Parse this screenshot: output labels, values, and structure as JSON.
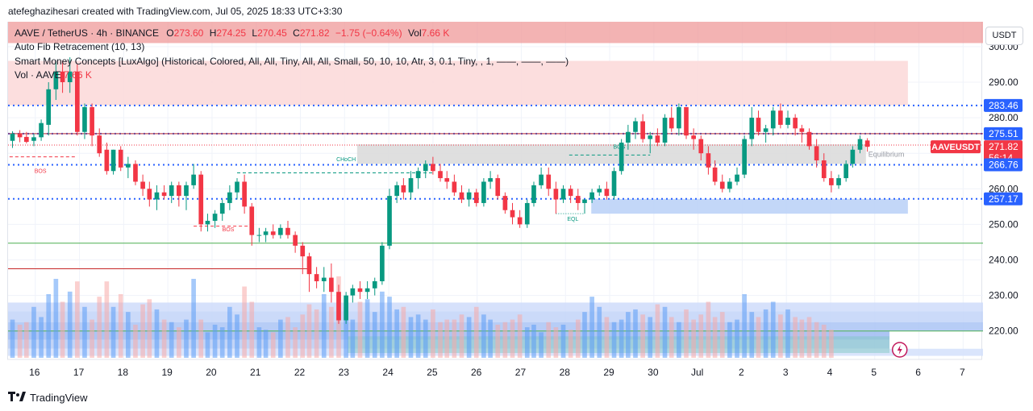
{
  "caption": "atefeghazihesari created with TradingView.com, Jul 05, 2025 18:33 UTC+3:30",
  "currency_button": "USDT",
  "brand": {
    "logo_icon": "tradingview-logo-icon",
    "name": "TradingView"
  },
  "legend": {
    "symbol": "AAVE / TetherUS · 4h · BINANCE",
    "open_label": "O",
    "open": "273.60",
    "high_label": "H",
    "high": "274.25",
    "low_label": "L",
    "low": "270.45",
    "close_label": "C",
    "close": "271.82",
    "change": "−1.75 (−0.64%)",
    "vol_label": "Vol",
    "vol": "7.66 K",
    "indicators": [
      "Auto Fib Retracement (10, 13)",
      "Smart Money Concepts [LuxAlgo] (Historical, Colored, All, All, Tiny, All, All, Small, 50, 10, 10, Atr, 3, 0.1, Tiny, , 1, ——, ——, ——)"
    ],
    "vol_row_label": "Vol · AAVE",
    "vol_row_value": "7.66 K"
  },
  "colors": {
    "up": "#089981",
    "down": "#f23645",
    "dotted": "#2962ff",
    "premium": "#fcdada",
    "discount": "#cfe0fb",
    "equilibrium": "#e0e0e0"
  },
  "chart_data": {
    "type": "candlestick",
    "symbol": "AAVEUSDT",
    "timeframe": "4h",
    "ylim": [
      212,
      307
    ],
    "y_ticks": [
      220,
      230,
      240,
      250,
      260,
      270,
      280,
      290,
      300
    ],
    "x_ticks": [
      {
        "label": "16",
        "x": 0
      },
      {
        "label": "17",
        "x": 6
      },
      {
        "label": "18",
        "x": 12
      },
      {
        "label": "19",
        "x": 18
      },
      {
        "label": "20",
        "x": 24
      },
      {
        "label": "21",
        "x": 30
      },
      {
        "label": "22",
        "x": 36
      },
      {
        "label": "23",
        "x": 42
      },
      {
        "label": "24",
        "x": 48
      },
      {
        "label": "25",
        "x": 54
      },
      {
        "label": "26",
        "x": 60
      },
      {
        "label": "27",
        "x": 66
      },
      {
        "label": "28",
        "x": 72
      },
      {
        "label": "29",
        "x": 78
      },
      {
        "label": "30",
        "x": 84
      },
      {
        "label": "Jul",
        "x": 90
      },
      {
        "label": "2",
        "x": 96
      },
      {
        "label": "3",
        "x": 102
      },
      {
        "label": "4",
        "x": 108
      },
      {
        "label": "5",
        "x": 114
      },
      {
        "label": "6",
        "x": 120
      },
      {
        "label": "7",
        "x": 126
      }
    ],
    "x_range": [
      -3.7,
      128.7
    ],
    "candles": [
      [
        -3.1,
        273.5,
        276.2,
        271.5,
        275.5
      ],
      [
        -2.1,
        275.5,
        276.5,
        273.1,
        274.5
      ],
      [
        -1.2,
        274.6,
        276.0,
        272.8,
        273.2
      ],
      [
        -0.2,
        273.5,
        275.5,
        272.0,
        274.5
      ],
      [
        0.8,
        274.5,
        279.5,
        273.5,
        278.5
      ],
      [
        1.8,
        278,
        290,
        275,
        288
      ],
      [
        2.8,
        288,
        296,
        285,
        293
      ],
      [
        3.7,
        293,
        296,
        287,
        290
      ],
      [
        4.7,
        290,
        297,
        287,
        293
      ],
      [
        5.7,
        293,
        295,
        275,
        276
      ],
      [
        6.7,
        276,
        284,
        274,
        283
      ],
      [
        7.7,
        283,
        284,
        272,
        275
      ],
      [
        8.7,
        275,
        277,
        269,
        270
      ],
      [
        9.7,
        271,
        273,
        264,
        265
      ],
      [
        10.6,
        265,
        271,
        264,
        271
      ],
      [
        11.6,
        271,
        272,
        265,
        266
      ],
      [
        12.6,
        266,
        269,
        263,
        267
      ],
      [
        13.6,
        267,
        268,
        261,
        262
      ],
      [
        14.6,
        262,
        264,
        258,
        260
      ],
      [
        15.5,
        260,
        262,
        255,
        257
      ],
      [
        16.5,
        257,
        261,
        254,
        259
      ],
      [
        17.5,
        259,
        261,
        257,
        258
      ],
      [
        18.5,
        258,
        262,
        256,
        261
      ],
      [
        19.5,
        261,
        262,
        255,
        258
      ],
      [
        20.5,
        258,
        262,
        254,
        261
      ],
      [
        21.5,
        261,
        267,
        260,
        264
      ],
      [
        22.5,
        264,
        265,
        248,
        250
      ],
      [
        23.4,
        250,
        253,
        248,
        251
      ],
      [
        24.4,
        251,
        254,
        249,
        253
      ],
      [
        25.4,
        253,
        257,
        251,
        256
      ],
      [
        26.4,
        256,
        261,
        254,
        259
      ],
      [
        27.4,
        259,
        263,
        257,
        262
      ],
      [
        28.4,
        262,
        264,
        253,
        255
      ],
      [
        29.4,
        255,
        256,
        244,
        247
      ],
      [
        30.4,
        247,
        249,
        245,
        247
      ],
      [
        31.3,
        247,
        249,
        245,
        248
      ],
      [
        32.3,
        248,
        250,
        246,
        247
      ],
      [
        33.3,
        247,
        250,
        246,
        249
      ],
      [
        34.3,
        249,
        251,
        246,
        247
      ],
      [
        35.3,
        247,
        248,
        242,
        244
      ],
      [
        36.3,
        244,
        245,
        236,
        241
      ],
      [
        37.2,
        241,
        242,
        231,
        236
      ],
      [
        38.2,
        236,
        238,
        232,
        234
      ],
      [
        39.2,
        234,
        238,
        231,
        235
      ],
      [
        40.2,
        235,
        239,
        228,
        231
      ],
      [
        41.2,
        231,
        233,
        222,
        223
      ],
      [
        42.2,
        223,
        231,
        222,
        230
      ],
      [
        43.1,
        230,
        233,
        228,
        232
      ],
      [
        44.1,
        232,
        234,
        229,
        231
      ],
      [
        45.1,
        231,
        234,
        229,
        232
      ],
      [
        46.1,
        232,
        235,
        230,
        234
      ],
      [
        47.1,
        234,
        245,
        233,
        244
      ],
      [
        48.1,
        244,
        260,
        243,
        258
      ],
      [
        49.1,
        258,
        262,
        256,
        261
      ],
      [
        50.0,
        261,
        263,
        257,
        259
      ],
      [
        51.0,
        259,
        265,
        257,
        263
      ],
      [
        52.0,
        263,
        266,
        260,
        265
      ],
      [
        53.0,
        265,
        268,
        263,
        267
      ],
      [
        54.0,
        267,
        269,
        264,
        265
      ],
      [
        55.0,
        265,
        267,
        262,
        263
      ],
      [
        55.9,
        263,
        265,
        260,
        262
      ],
      [
        56.9,
        262,
        264,
        258,
        259
      ],
      [
        57.9,
        259,
        261,
        256,
        257
      ],
      [
        58.9,
        257,
        260,
        255,
        259
      ],
      [
        59.9,
        259,
        260,
        255,
        256
      ],
      [
        60.9,
        256,
        263,
        255,
        262
      ],
      [
        61.8,
        262,
        265,
        260,
        263
      ],
      [
        62.8,
        263,
        264,
        257,
        258
      ],
      [
        63.8,
        258,
        259,
        253,
        254
      ],
      [
        64.8,
        254,
        256,
        250,
        252
      ],
      [
        65.8,
        252,
        254,
        249,
        250
      ],
      [
        66.8,
        250,
        257,
        249,
        256
      ],
      [
        67.7,
        256,
        262,
        255,
        261
      ],
      [
        68.7,
        261,
        266,
        260,
        264
      ],
      [
        69.7,
        264,
        266,
        258,
        260
      ],
      [
        70.7,
        260,
        262,
        253,
        257
      ],
      [
        71.7,
        257,
        261,
        256,
        260
      ],
      [
        72.7,
        260,
        261,
        256,
        258
      ],
      [
        73.7,
        258,
        260,
        254,
        256
      ],
      [
        74.6,
        256,
        257,
        253,
        257
      ],
      [
        75.6,
        257,
        260,
        256,
        259
      ],
      [
        76.6,
        259,
        261,
        258,
        260
      ],
      [
        77.6,
        260,
        262,
        257,
        258
      ],
      [
        78.6,
        258,
        266,
        257,
        265
      ],
      [
        79.6,
        265,
        274,
        264,
        273
      ],
      [
        80.5,
        273,
        278,
        271,
        276
      ],
      [
        81.5,
        276,
        280,
        274,
        279
      ],
      [
        82.5,
        279,
        281,
        273,
        274
      ],
      [
        83.5,
        274,
        276,
        270,
        275
      ],
      [
        84.5,
        275,
        277,
        272,
        273
      ],
      [
        85.5,
        273,
        281,
        272,
        280
      ],
      [
        86.4,
        280,
        283,
        276,
        277
      ],
      [
        87.4,
        277,
        284,
        275,
        283
      ],
      [
        88.4,
        283,
        283,
        274,
        275
      ],
      [
        89.4,
        275,
        277,
        271,
        274
      ],
      [
        90.4,
        274,
        275,
        268,
        270
      ],
      [
        91.4,
        270,
        272,
        264,
        266
      ],
      [
        92.3,
        266,
        268,
        261,
        262
      ],
      [
        93.3,
        262,
        264,
        259,
        260
      ],
      [
        94.3,
        260,
        263,
        259,
        262
      ],
      [
        95.3,
        262,
        266,
        261,
        264
      ],
      [
        96.3,
        264,
        275,
        263,
        274
      ],
      [
        97.3,
        274,
        283,
        272,
        280
      ],
      [
        98.2,
        280,
        282,
        275,
        276
      ],
      [
        99.2,
        276,
        278,
        273,
        277
      ],
      [
        100.2,
        277,
        283,
        275,
        282
      ],
      [
        101.2,
        282,
        284,
        277,
        278
      ],
      [
        102.2,
        278,
        282,
        277,
        280
      ],
      [
        103.2,
        280,
        281,
        275,
        277
      ],
      [
        104.1,
        277,
        278,
        273,
        276
      ],
      [
        105.1,
        276,
        277,
        271,
        272
      ],
      [
        106.1,
        272,
        274,
        266,
        268
      ],
      [
        107.1,
        268,
        270,
        262,
        263
      ],
      [
        108.1,
        263,
        265,
        259,
        261
      ],
      [
        109.1,
        261,
        264,
        260,
        263
      ],
      [
        110.1,
        263,
        268,
        262,
        267
      ],
      [
        111.0,
        267,
        272,
        266,
        271
      ],
      [
        112.0,
        271,
        275,
        270,
        274
      ],
      [
        113.0,
        273.6,
        274.25,
        270.45,
        271.82
      ]
    ],
    "volumes": [
      1.5,
      1.3,
      1.4,
      2.0,
      1.6,
      2.5,
      3.1,
      2.2,
      2.6,
      3.0,
      2.0,
      1.5,
      2.4,
      3.0,
      2.0,
      2.5,
      1.8,
      1.3,
      2.1,
      2.3,
      1.9,
      1.5,
      1.4,
      1.2,
      1.5,
      3.1,
      1.5,
      1.0,
      1.3,
      1.2,
      2.0,
      1.7,
      2.8,
      2.2,
      1.2,
      1.1,
      1.0,
      1.5,
      1.6,
      1.2,
      1.7,
      2.1,
      1.9,
      2.5,
      2.0,
      3.2,
      2.0,
      1.5,
      2.2,
      2.3,
      1.8,
      2.6,
      2.4,
      1.9,
      2.0,
      1.6,
      1.7,
      1.5,
      1.9,
      1.4,
      1.5,
      1.5,
      1.7,
      1.6,
      2.0,
      1.7,
      1.5,
      1.3,
      1.4,
      1.5,
      1.7,
      1.2,
      1.3,
      1.0,
      1.4,
      1.2,
      1.3,
      1.1,
      1.5,
      1.8,
      2.4,
      2.0,
      1.6,
      1.4,
      1.5,
      1.8,
      1.9,
      1.7,
      1.6,
      2.1,
      2.0,
      1.6,
      1.4,
      1.9,
      1.5,
      1.7,
      2.2,
      1.6,
      1.8,
      1.4,
      1.5,
      2.5,
      1.8,
      1.6,
      1.9,
      2.2,
      1.7,
      1.9,
      1.6,
      1.5,
      1.6,
      1.4,
      1.3,
      1.1
    ],
    "volume_value_colors": {
      "up": "#5b9cf6",
      "down": "#f7a9a7"
    },
    "price_labels": [
      {
        "value": 283.46,
        "text": "283.46",
        "color": "#2962ff"
      },
      {
        "value": 275.51,
        "text": "275.51",
        "color": "#2962ff"
      },
      {
        "value": 271.82,
        "text": "271.82",
        "name": "AAVEUSDT",
        "countdown": "56:14",
        "color": "#f23645"
      },
      {
        "value": 266.76,
        "text": "266.76",
        "color": "#2962ff"
      },
      {
        "value": 257.17,
        "text": "257.17",
        "color": "#2962ff"
      }
    ],
    "horizontal_levels": [
      {
        "value": 283.46,
        "style": "dotted",
        "color": "#2962ff"
      },
      {
        "value": 275.51,
        "style": "dotted",
        "color": "#2962ff"
      },
      {
        "value": 266.76,
        "style": "dotted",
        "color": "#2962ff"
      },
      {
        "value": 257.17,
        "style": "dotted",
        "color": "#2962ff"
      },
      {
        "value": 275.51,
        "style": "solid",
        "color": "#b22833"
      },
      {
        "value": 244.7,
        "style": "solid",
        "color": "#4caf50",
        "from_x": -3.7
      },
      {
        "value": 237.5,
        "style": "solid",
        "color": "#c62828",
        "from_x": -3.7,
        "to_x": 37
      },
      {
        "value": 272.3,
        "style": "dotted-thin",
        "color": "#f23645"
      }
    ],
    "zones": [
      {
        "name": "premium",
        "from": 296,
        "to": 283.5,
        "x0": -3.7,
        "x1": 118.5,
        "color": "#fcdada"
      },
      {
        "name": "top-band",
        "from": 307,
        "to": 301,
        "x0": -3.7,
        "x1": 128.7,
        "color": "#ef9a9a"
      },
      {
        "name": "equilibrium",
        "from": 272.5,
        "to": 267,
        "x0": 43.7,
        "x1": 112.8,
        "color": "#dcdcdc",
        "label": "Equilibrium"
      },
      {
        "name": "discount",
        "from": 257.17,
        "to": 253,
        "x0": 75.5,
        "x1": 118.5,
        "color": "#bcd3f7"
      }
    ],
    "smc_labels": [
      {
        "text": "BOS",
        "x": 0.7,
        "y": 264.5,
        "color": "#f23645"
      },
      {
        "text": "BOS",
        "x": 26.2,
        "y": 248,
        "color": "#f23645"
      },
      {
        "text": "CHoCH",
        "x": 42.2,
        "y": 267.8,
        "color": "#089981"
      },
      {
        "text": "BOS",
        "x": 79.3,
        "y": 271.3,
        "color": "#089981"
      },
      {
        "text": "EQL",
        "x": 73.0,
        "y": 251,
        "color": "#089981"
      }
    ],
    "smc_lines": [
      {
        "x0": -3.5,
        "x1": 5.7,
        "y": 269,
        "color": "#f23645",
        "style": "dashed"
      },
      {
        "x0": 21.5,
        "x1": 29.8,
        "y": 249.5,
        "color": "#f23645",
        "style": "dashed"
      },
      {
        "x0": 27.4,
        "x1": 54.0,
        "y": 264.5,
        "color": "#089981",
        "style": "dashed"
      },
      {
        "x0": 72.5,
        "x1": 83.5,
        "y": 269.5,
        "color": "#089981",
        "style": "dashed"
      },
      {
        "x0": 70.7,
        "x1": 74.6,
        "y": 253,
        "color": "#089981",
        "style": "dotted"
      }
    ],
    "volume_profile": [
      {
        "from": 228.0,
        "to": 225.5,
        "x1": 128.7,
        "color": "#cfdcfa"
      },
      {
        "from": 225.5,
        "to": 222.5,
        "x1": 128.7,
        "color": "#c2d4f8"
      },
      {
        "from": 222.5,
        "to": 220.0,
        "x1": 128.7,
        "color": "#aac4f5"
      },
      {
        "from": 220.0,
        "to": 217.5,
        "x1": 116.0,
        "color": "#9dbbf2"
      },
      {
        "from": 217.5,
        "to": 215.0,
        "x1": 116.0,
        "color": "#b8cdf5"
      },
      {
        "from": 215.0,
        "to": 213.0,
        "x1": 128.7,
        "color": "#d3e0fb"
      }
    ],
    "poc": {
      "value": 220.0,
      "color": "#4caf50"
    },
    "profile_extra": {
      "x0": 42.4,
      "x1": 116.0,
      "from": 218.5,
      "to": 213.8,
      "color": "#7fc8c1"
    },
    "volume_max": 7.0
  }
}
